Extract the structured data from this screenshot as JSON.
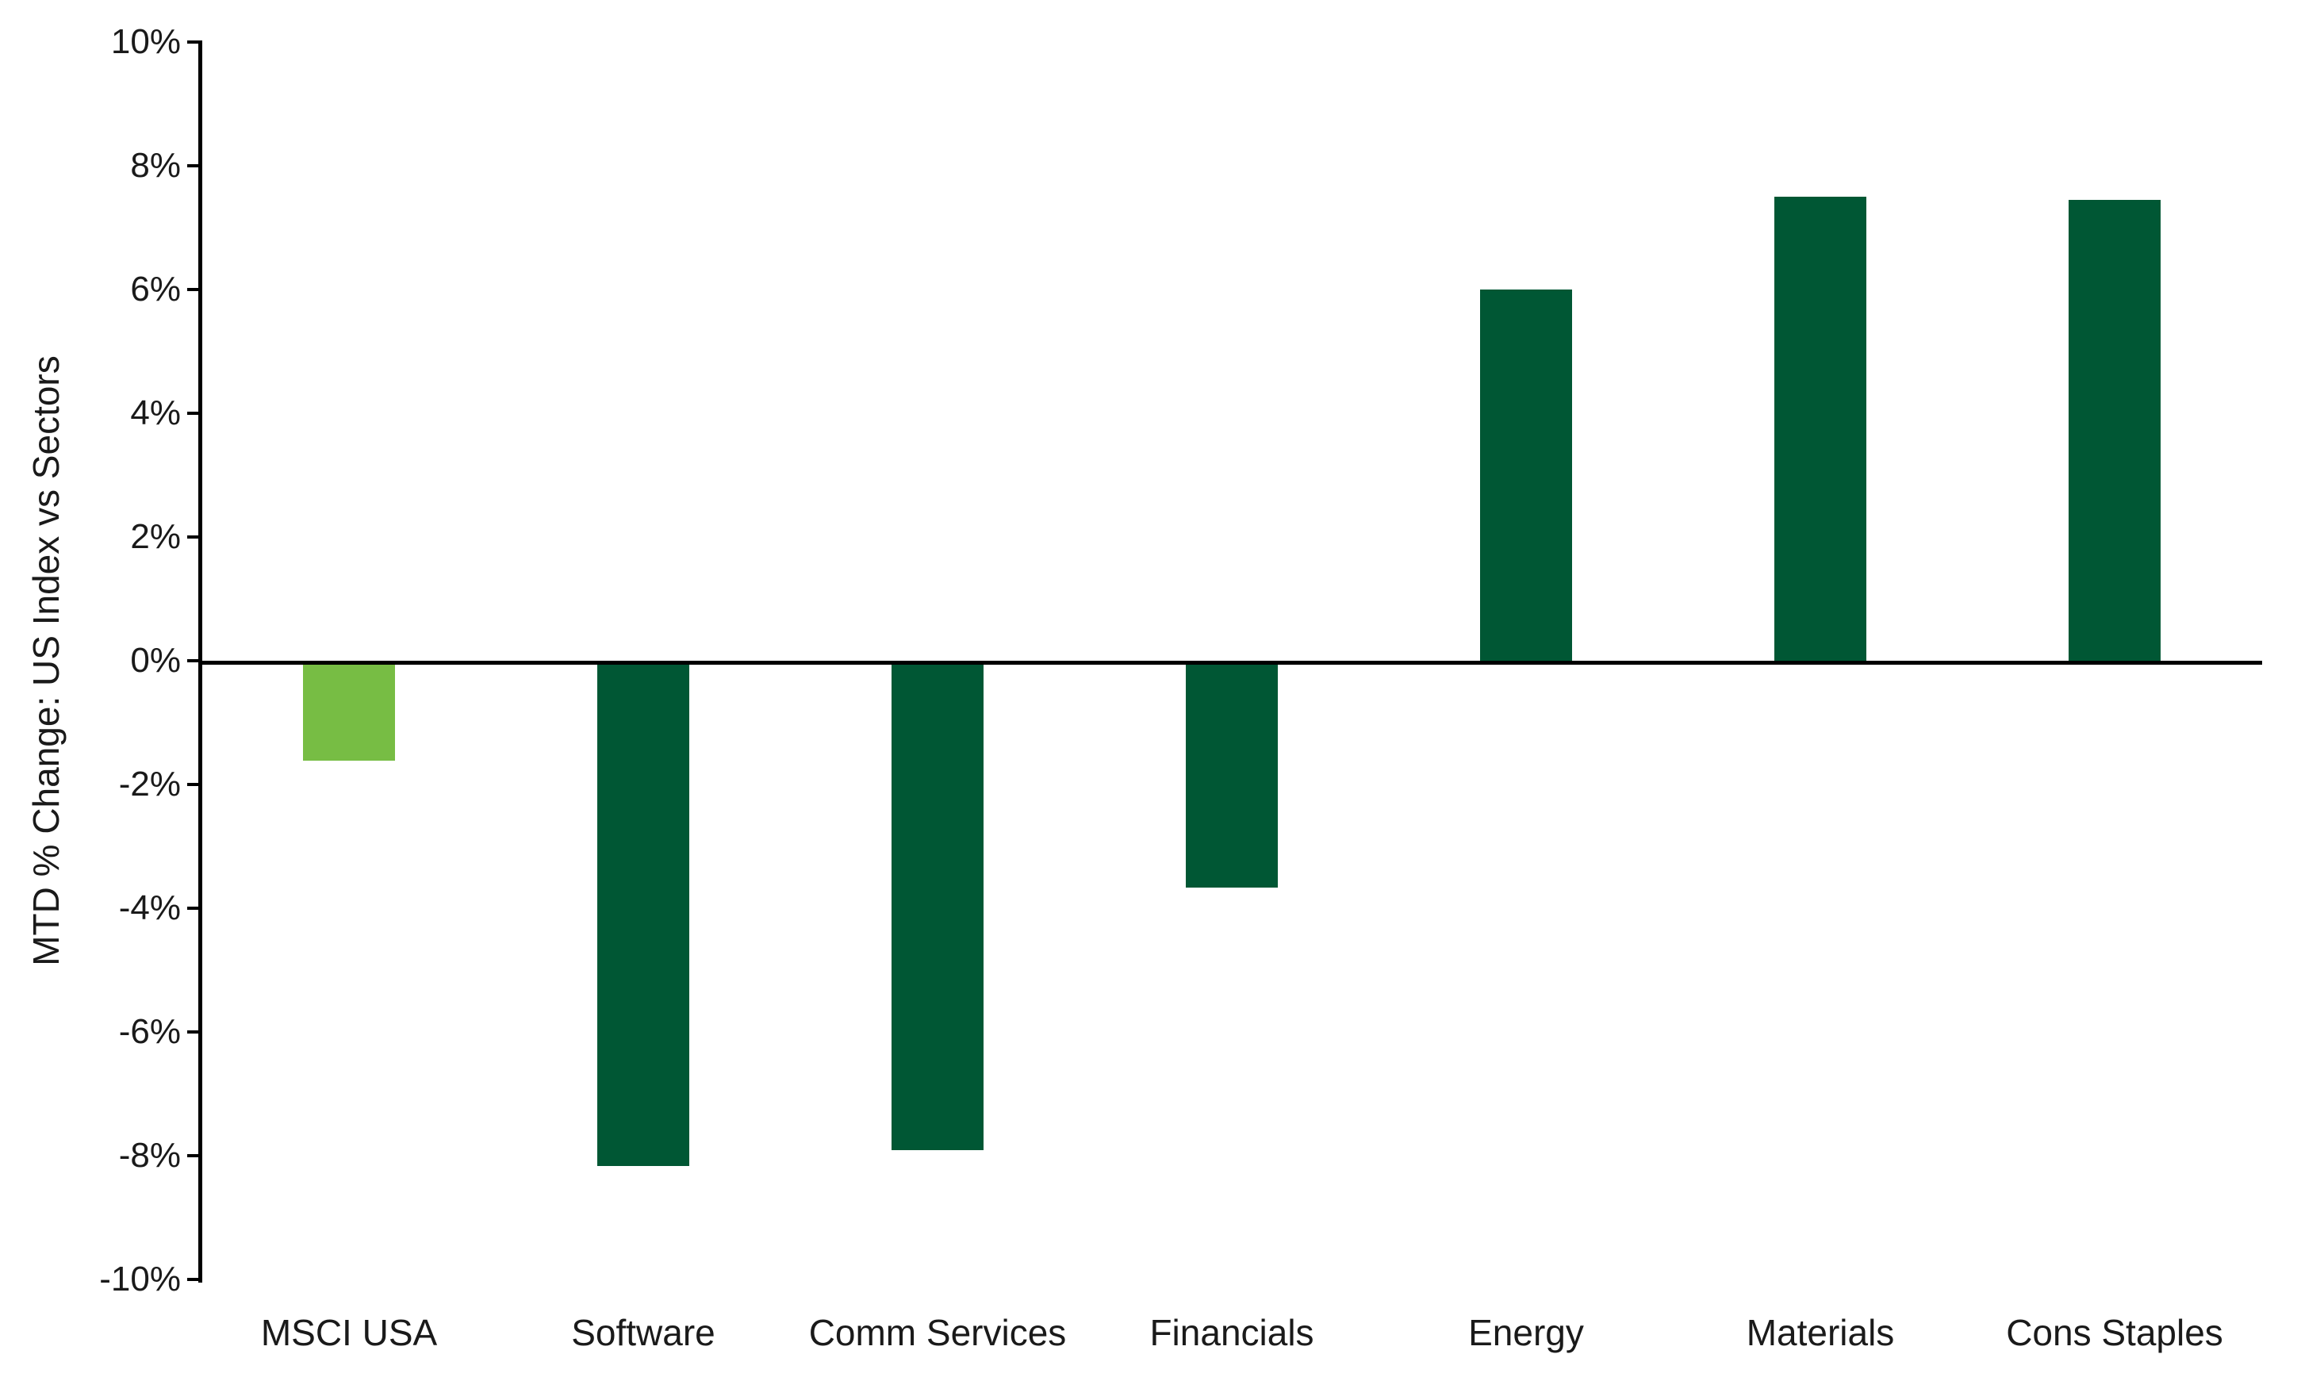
{
  "chart_data": {
    "type": "bar",
    "title": "",
    "xlabel": "",
    "ylabel": "MTD % Change: US Index vs Sectors",
    "categories": [
      "MSCI USA",
      "Software",
      "Comm Services",
      "Financials",
      "Energy",
      "Materials",
      "Cons Staples"
    ],
    "values": [
      -1.55,
      -8.1,
      -7.85,
      -3.6,
      6.0,
      7.5,
      7.45
    ],
    "bar_colors": [
      "#77BD44",
      "#005734",
      "#005734",
      "#005734",
      "#005734",
      "#005734",
      "#005734"
    ],
    "highlight_color": "#77BD44",
    "default_color": "#005734",
    "axis_color": "#000000",
    "background_color": "#FFFFFF",
    "ylim": [
      -10,
      10
    ],
    "ytick_step": 2,
    "ytick_labels": [
      "10%",
      "8%",
      "6%",
      "4%",
      "2%",
      "0%",
      "-2%",
      "-4%",
      "-6%",
      "-8%",
      "-10%"
    ],
    "grid": false,
    "legend": "none",
    "data_labels": "none"
  }
}
